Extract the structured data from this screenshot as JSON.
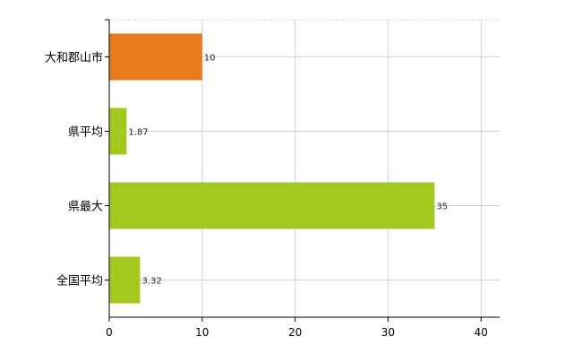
{
  "chart_data": {
    "type": "bar",
    "orientation": "horizontal",
    "categories": [
      "大和郡山市",
      "県平均",
      "県最大",
      "全国平均"
    ],
    "values": [
      10,
      1.87,
      35,
      3.32
    ],
    "value_labels": [
      "10",
      "1.87",
      "35",
      "3.32"
    ],
    "bar_colors": [
      "#e87b1e",
      "#a4c91e",
      "#a4c91e",
      "#a4c91e"
    ],
    "xlim": [
      0,
      42
    ],
    "xticks": [
      0,
      10,
      20,
      30,
      40
    ],
    "xtick_labels": [
      "0",
      "10",
      "20",
      "30",
      "40"
    ],
    "grid": true,
    "grid_color": "#d3d3d3",
    "axis_color": "#000000",
    "title": "",
    "xlabel": "",
    "ylabel": "",
    "legend": "none"
  }
}
